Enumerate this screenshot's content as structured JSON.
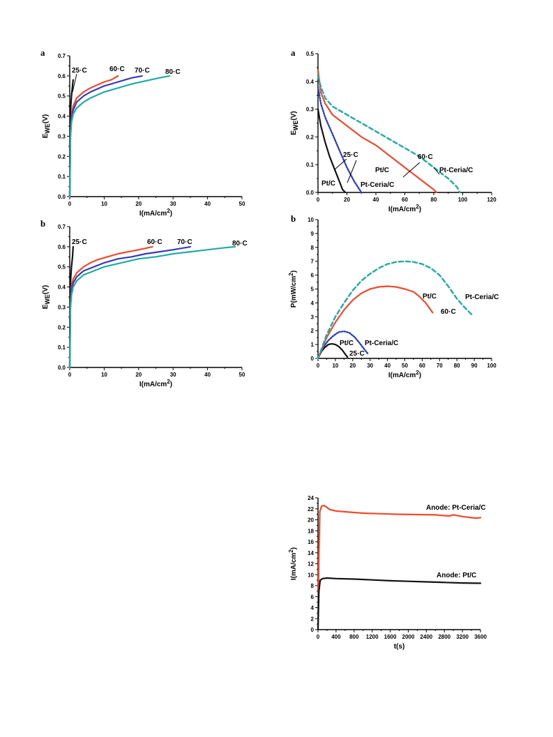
{
  "colors": {
    "c25": "#111111",
    "c60": "#f04a2c",
    "c70": "#3a3ab8",
    "c80": "#1eaaa6",
    "ptc_red": "#f04a2c",
    "ceria_teal": "#1eaaa6",
    "ceria_blue": "#2a3fbf"
  },
  "chart_data": [
    {
      "id": "polarization-a",
      "panel": "a",
      "type": "line",
      "xlabel": "I(mA/cm²)",
      "ylabel": "E_WE(V)",
      "xlim": [
        0,
        50
      ],
      "ylim": [
        0,
        0.7
      ],
      "xticks": [
        "0",
        "10",
        "20",
        "30",
        "40",
        "50"
      ],
      "yticks": [
        "0.0",
        "0.1",
        "0.2",
        "0.3",
        "0.4",
        "0.5",
        "0.6",
        "0.7"
      ],
      "series": [
        {
          "name": "25·C",
          "color": "c25",
          "dash": "solid",
          "x": [
            0,
            0.05,
            0.15,
            0.3,
            0.5,
            0.8,
            1.0
          ],
          "y": [
            0,
            0.25,
            0.38,
            0.45,
            0.5,
            0.55,
            0.58
          ]
        },
        {
          "name": "60·C",
          "color": "c60",
          "dash": "solid",
          "x": [
            0,
            0.2,
            0.5,
            1,
            2,
            4,
            6,
            8,
            10,
            12,
            14
          ],
          "y": [
            0,
            0.3,
            0.4,
            0.45,
            0.49,
            0.52,
            0.54,
            0.555,
            0.57,
            0.58,
            0.6
          ]
        },
        {
          "name": "70·C",
          "color": "c70",
          "dash": "solid",
          "x": [
            0,
            0.2,
            0.5,
            1,
            2,
            4,
            6,
            8,
            10,
            13,
            16,
            18,
            21
          ],
          "y": [
            0,
            0.3,
            0.39,
            0.43,
            0.47,
            0.5,
            0.52,
            0.535,
            0.55,
            0.565,
            0.58,
            0.59,
            0.6
          ]
        },
        {
          "name": "80·C",
          "color": "c80",
          "dash": "solid",
          "x": [
            0,
            0.2,
            0.5,
            1,
            2,
            4,
            6,
            10,
            14,
            18,
            22,
            26,
            29
          ],
          "y": [
            0,
            0.3,
            0.37,
            0.41,
            0.44,
            0.47,
            0.49,
            0.52,
            0.54,
            0.56,
            0.575,
            0.59,
            0.6
          ]
        }
      ],
      "labels": [
        "25·C",
        "60·C",
        "70·C",
        "80·C"
      ]
    },
    {
      "id": "polarization-b",
      "panel": "b",
      "type": "line",
      "xlabel": "I(mA/cm²)",
      "ylabel": "E_WE(V)",
      "xlim": [
        0,
        50
      ],
      "ylim": [
        0,
        0.7
      ],
      "xticks": [
        "0",
        "10",
        "20",
        "30",
        "40",
        "50"
      ],
      "yticks": [
        "0.0",
        "0.1",
        "0.2",
        "0.3",
        "0.4",
        "0.5",
        "0.6",
        "0.7"
      ],
      "series": [
        {
          "name": "25·C",
          "color": "c25",
          "dash": "solid",
          "x": [
            0,
            0.05,
            0.15,
            0.3,
            0.5,
            0.8,
            1.0
          ],
          "y": [
            0,
            0.25,
            0.38,
            0.45,
            0.5,
            0.55,
            0.6
          ]
        },
        {
          "name": "60·C",
          "color": "c60",
          "dash": "solid",
          "x": [
            0,
            0.2,
            0.5,
            1,
            2,
            4,
            6,
            8,
            11,
            14,
            17,
            20,
            24
          ],
          "y": [
            0,
            0.3,
            0.4,
            0.44,
            0.47,
            0.5,
            0.52,
            0.535,
            0.55,
            0.565,
            0.575,
            0.585,
            0.6
          ]
        },
        {
          "name": "70·C",
          "color": "c70",
          "dash": "solid",
          "x": [
            0,
            0.2,
            0.5,
            1,
            2,
            4,
            7,
            10,
            14,
            18,
            22,
            26,
            30,
            35
          ],
          "y": [
            0,
            0.3,
            0.38,
            0.42,
            0.45,
            0.48,
            0.5,
            0.52,
            0.54,
            0.55,
            0.565,
            0.575,
            0.585,
            0.6
          ]
        },
        {
          "name": "80·C",
          "color": "c80",
          "dash": "solid",
          "x": [
            0,
            0.2,
            0.5,
            1,
            2,
            4,
            7,
            10,
            15,
            20,
            25,
            30,
            35,
            40,
            45,
            48
          ],
          "y": [
            0,
            0.3,
            0.36,
            0.4,
            0.43,
            0.46,
            0.48,
            0.5,
            0.52,
            0.54,
            0.55,
            0.565,
            0.575,
            0.585,
            0.595,
            0.6
          ]
        }
      ],
      "labels": [
        "25·C",
        "60·C",
        "70·C",
        "80·C"
      ]
    },
    {
      "id": "polarization-right-a",
      "panel": "a",
      "type": "line",
      "xlabel": "I(mA/cm²)",
      "ylabel": "E_WE(V)",
      "xlim": [
        0,
        120
      ],
      "ylim": [
        0,
        0.5
      ],
      "xticks": [
        "0",
        "20",
        "40",
        "60",
        "80",
        "100",
        "120"
      ],
      "yticks": [
        "0.0",
        "0.1",
        "0.2",
        "0.3",
        "0.4",
        "0.5"
      ],
      "series": [
        {
          "name": "Pt/C 25·C",
          "color": "c25",
          "dash": "solid",
          "x": [
            0,
            2,
            5,
            8,
            11,
            14,
            17,
            19
          ],
          "y": [
            0.3,
            0.24,
            0.18,
            0.13,
            0.09,
            0.05,
            0.01,
            0
          ]
        },
        {
          "name": "Pt-Ceria/C 25·C",
          "color": "ceria_blue",
          "dash": "dot",
          "x": [
            0,
            2,
            5,
            10,
            15,
            20,
            25,
            30
          ],
          "y": [
            0.38,
            0.32,
            0.27,
            0.21,
            0.15,
            0.09,
            0.04,
            0
          ]
        },
        {
          "name": "Pt/C 60·C",
          "color": "ptc_red",
          "dash": "solid",
          "x": [
            0,
            2,
            5,
            10,
            20,
            30,
            40,
            50,
            60,
            70,
            80,
            82
          ],
          "y": [
            0.44,
            0.36,
            0.32,
            0.28,
            0.24,
            0.2,
            0.17,
            0.13,
            0.09,
            0.05,
            0.01,
            0
          ]
        },
        {
          "name": "Pt-Ceria/C 60·C",
          "color": "ceria_teal",
          "dash": "dash",
          "x": [
            0,
            2,
            5,
            10,
            20,
            30,
            40,
            50,
            60,
            70,
            80,
            90,
            96,
            98
          ],
          "y": [
            0.42,
            0.38,
            0.34,
            0.31,
            0.28,
            0.25,
            0.22,
            0.19,
            0.16,
            0.13,
            0.09,
            0.05,
            0.02,
            0
          ]
        }
      ],
      "labels": [
        "25·C",
        "60·C",
        "Pt/C",
        "Pt/C",
        "Pt-Ceria/C",
        "Pt-Ceria/C"
      ]
    },
    {
      "id": "power-b",
      "panel": "b",
      "type": "line",
      "xlabel": "I(mA/cm²)",
      "ylabel": "P(mW/cm²)",
      "xlim": [
        0,
        100
      ],
      "ylim": [
        0,
        10
      ],
      "xticks": [
        "0",
        "10",
        "20",
        "30",
        "40",
        "50",
        "60",
        "70",
        "80",
        "90",
        "100"
      ],
      "yticks": [
        "0",
        "1",
        "2",
        "3",
        "4",
        "5",
        "6",
        "7",
        "8",
        "9",
        "10"
      ],
      "series": [
        {
          "name": "Pt/C 25·C",
          "color": "c25",
          "dash": "solid",
          "x": [
            0,
            2,
            4,
            6,
            8,
            10,
            12,
            14,
            16,
            17
          ],
          "y": [
            0,
            0.5,
            0.8,
            1.0,
            1.05,
            1.0,
            0.85,
            0.6,
            0.25,
            0.1
          ]
        },
        {
          "name": "Pt-Ceria/C 25·C",
          "color": "ceria_blue",
          "dash": "dot",
          "x": [
            0,
            3,
            6,
            9,
            12,
            15,
            18,
            21,
            24,
            27,
            29
          ],
          "y": [
            0,
            0.8,
            1.3,
            1.65,
            1.9,
            1.95,
            1.85,
            1.55,
            1.1,
            0.6,
            0.3
          ]
        },
        {
          "name": "Pt/C 60·C",
          "color": "ptc_red",
          "dash": "solid",
          "x": [
            0,
            5,
            10,
            15,
            20,
            25,
            30,
            35,
            40,
            45,
            50,
            55,
            58,
            62,
            66
          ],
          "y": [
            0,
            1.5,
            2.6,
            3.5,
            4.2,
            4.7,
            5.0,
            5.15,
            5.2,
            5.15,
            5.0,
            4.8,
            4.5,
            4.0,
            3.3
          ]
        },
        {
          "name": "Pt-Ceria/C 60·C",
          "color": "ceria_teal",
          "dash": "dash",
          "x": [
            0,
            5,
            10,
            15,
            20,
            25,
            30,
            35,
            40,
            45,
            50,
            55,
            60,
            65,
            70,
            75,
            80,
            85,
            89
          ],
          "y": [
            0,
            1.7,
            3.0,
            4.0,
            4.9,
            5.6,
            6.1,
            6.5,
            6.8,
            6.95,
            7.0,
            6.95,
            6.8,
            6.5,
            6.0,
            5.2,
            4.3,
            3.6,
            3.1
          ]
        }
      ],
      "labels": [
        "25·C",
        "60·C",
        "Pt/C",
        "Pt/C",
        "Pt-Ceria/C",
        "Pt-Ceria/C"
      ]
    },
    {
      "id": "chronoamperometry",
      "panel": "",
      "type": "line",
      "xlabel": "t(s)",
      "ylabel": "I(mA/cm²)",
      "xlim": [
        0,
        3600
      ],
      "ylim": [
        0,
        24
      ],
      "xticks": [
        "0",
        "400",
        "800",
        "1200",
        "1600",
        "2000",
        "2400",
        "2800",
        "3200",
        "3600"
      ],
      "yticks": [
        "0",
        "2",
        "4",
        "6",
        "8",
        "10",
        "12",
        "14",
        "16",
        "18",
        "20",
        "22",
        "24"
      ],
      "series": [
        {
          "name": "Anode: Pt-Ceria/C",
          "color": "ptc_red",
          "dash": "solid",
          "x": [
            0,
            20,
            40,
            80,
            120,
            180,
            250,
            400,
            700,
            1000,
            1400,
            1800,
            2200,
            2600,
            2900,
            3000,
            3200,
            3400,
            3500,
            3600
          ],
          "y": [
            0,
            14,
            21.5,
            22.5,
            22.6,
            22.4,
            21.9,
            21.6,
            21.4,
            21.2,
            21.1,
            21.0,
            20.95,
            20.9,
            20.7,
            20.9,
            20.6,
            20.4,
            20.3,
            20.4
          ]
        },
        {
          "name": "Anode: Pt/C",
          "color": "c25",
          "dash": "solid",
          "x": [
            0,
            20,
            50,
            100,
            200,
            400,
            800,
            1200,
            1600,
            2000,
            2400,
            2800,
            3200,
            3600
          ],
          "y": [
            0,
            7,
            9.0,
            9.3,
            9.4,
            9.3,
            9.2,
            9.05,
            8.9,
            8.8,
            8.7,
            8.6,
            8.5,
            8.45
          ]
        }
      ],
      "labels": [
        "Anode: Pt-Ceria/C",
        "Anode: Pt/C"
      ]
    }
  ]
}
